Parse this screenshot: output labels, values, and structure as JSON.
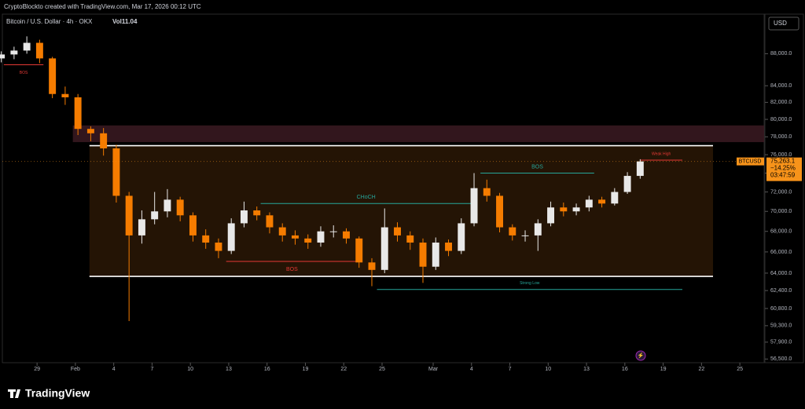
{
  "header": {
    "credit": "CryptoBlockto created with TradingView.com, Mar 17, 2026 00:12 UTC",
    "symbol": "Bitcoin / U.S. Dollar · 4h · OKX",
    "volume": "Vol11.04",
    "currency": "USD"
  },
  "footer": {
    "brand": "TradingView"
  },
  "chart_data": {
    "type": "candlestick",
    "log_scale": true,
    "grid": false,
    "up_color": "#e8e8e8",
    "down_color": "#f57c00",
    "xlim": [
      -2.9,
      56.9
    ],
    "xticks": [
      {
        "value": 0,
        "label": "29"
      },
      {
        "value": 3,
        "label": "Feb"
      },
      {
        "value": 6,
        "label": "4"
      },
      {
        "value": 9,
        "label": "7"
      },
      {
        "value": 12,
        "label": "10"
      },
      {
        "value": 15,
        "label": "13"
      },
      {
        "value": 18,
        "label": "16"
      },
      {
        "value": 21,
        "label": "19"
      },
      {
        "value": 24,
        "label": "22"
      },
      {
        "value": 27,
        "label": "25"
      },
      {
        "value": 31,
        "label": "Mar"
      },
      {
        "value": 34,
        "label": "4"
      },
      {
        "value": 37,
        "label": "7"
      },
      {
        "value": 40,
        "label": "10"
      },
      {
        "value": 43,
        "label": "13"
      },
      {
        "value": 46,
        "label": "16"
      },
      {
        "value": 49,
        "label": "19"
      },
      {
        "value": 52,
        "label": "22"
      },
      {
        "value": 55,
        "label": "25"
      }
    ],
    "ylim": [
      56200,
      93200
    ],
    "yticks": [
      {
        "value": 88000,
        "label": "88,000.0"
      },
      {
        "value": 84000,
        "label": "84,000.0"
      },
      {
        "value": 82000,
        "label": "82,000.0"
      },
      {
        "value": 80000,
        "label": "80,000.0"
      },
      {
        "value": 78000,
        "label": "78,000.0"
      },
      {
        "value": 76000,
        "label": "76,000.0"
      },
      {
        "value": 74000,
        "label": "74,000.0"
      },
      {
        "value": 72000,
        "label": "72,000.0"
      },
      {
        "value": 70000,
        "label": "70,000.0"
      },
      {
        "value": 68000,
        "label": "68,000.0"
      },
      {
        "value": 66000,
        "label": "66,000.0"
      },
      {
        "value": 64000,
        "label": "64,000.0"
      },
      {
        "value": 62400,
        "label": "62,400.0"
      },
      {
        "value": 60800,
        "label": "60,800.0"
      },
      {
        "value": 59300,
        "label": "59,300.0"
      },
      {
        "value": 57900,
        "label": "57,900.0"
      },
      {
        "value": 56500,
        "label": "56,500.0"
      }
    ],
    "x": [
      -2.8,
      -1.8,
      -0.8,
      0.2,
      1.2,
      2.2,
      3.2,
      4.2,
      5.2,
      6.2,
      7.2,
      8.2,
      9.2,
      10.2,
      11.2,
      12.2,
      13.2,
      14.2,
      15.2,
      16.2,
      17.2,
      18.2,
      19.2,
      20.2,
      21.2,
      22.2,
      23.2,
      24.2,
      25.2,
      26.2,
      27.2,
      28.2,
      29.2,
      30.2,
      31.2,
      32.2,
      33.2,
      34.2,
      35.2,
      36.2,
      37.2,
      38.2,
      39.2,
      40.2,
      41.2,
      42.2,
      43.2,
      44.2,
      45.2,
      46.2,
      47.2
    ],
    "open": [
      87400,
      87900,
      88400,
      89400,
      87400,
      83000,
      82600,
      78900,
      78400,
      76700,
      71600,
      67600,
      69200,
      70000,
      71200,
      69600,
      67600,
      66900,
      66100,
      68800,
      70100,
      69600,
      68400,
      67600,
      67300,
      66900,
      68000,
      68000,
      67300,
      65000,
      64300,
      68400,
      67600,
      66900,
      64600,
      66900,
      66100,
      68800,
      72400,
      71600,
      68400,
      67600,
      67600,
      68800,
      70400,
      70000,
      70400,
      71200,
      70800,
      72000,
      73700
    ],
    "high": [
      88300,
      88900,
      90240,
      89800,
      87600,
      83900,
      83000,
      79200,
      79000,
      77100,
      72000,
      70100,
      72000,
      72300,
      71500,
      69900,
      68200,
      67300,
      69300,
      71000,
      70500,
      69900,
      68800,
      68100,
      67700,
      68500,
      68600,
      68300,
      67500,
      65400,
      70300,
      68900,
      68000,
      67300,
      67400,
      67200,
      69300,
      74000,
      73300,
      71900,
      68700,
      68100,
      69200,
      71000,
      70900,
      70800,
      71600,
      71500,
      72400,
      74100,
      75500
    ],
    "low": [
      86900,
      87300,
      88000,
      86800,
      82500,
      81700,
      78200,
      77500,
      75900,
      70900,
      59700,
      66800,
      68700,
      69400,
      69000,
      67000,
      66300,
      65400,
      65800,
      68400,
      69100,
      67800,
      67000,
      66700,
      66300,
      66500,
      67400,
      66800,
      64500,
      62800,
      64000,
      67000,
      66200,
      63100,
      64300,
      65600,
      65800,
      68500,
      71000,
      67900,
      67100,
      67000,
      66100,
      68500,
      69500,
      69600,
      70000,
      70400,
      70600,
      71800,
      73400
    ],
    "close": [
      87900,
      88400,
      89400,
      87400,
      83000,
      82600,
      78900,
      78400,
      76700,
      71600,
      67600,
      69200,
      70000,
      71200,
      69600,
      67600,
      66900,
      66100,
      68800,
      70100,
      69600,
      68400,
      67600,
      67300,
      66900,
      68000,
      68000,
      67300,
      65000,
      64300,
      68400,
      67600,
      66900,
      64600,
      66900,
      66100,
      68800,
      72400,
      71600,
      68400,
      67600,
      67600,
      68800,
      70400,
      70000,
      70400,
      71200,
      70800,
      72000,
      73700,
      75263.1
    ],
    "last_label": "75,263.1",
    "change_label": "−14.25%",
    "countdown": "03:47:59",
    "symbol_tag": "BTCUSD",
    "tag_color": "#f7931a",
    "zones": [
      {
        "top": 79300,
        "bottom": 77400,
        "x_start": 2.8,
        "x_end": 56.9,
        "color": "#3b1a22"
      },
      {
        "top": 77000,
        "bottom": 63700,
        "x_start": 4.1,
        "x_end": 52.9,
        "color": "#2a1806"
      }
    ],
    "levels": [
      {
        "price": 86600,
        "x_start": -2.6,
        "x_end": 0.5,
        "color": "#e53935",
        "label": "BOS"
      },
      {
        "price": 77000,
        "x_start": 4.1,
        "x_end": 52.9,
        "color": "#ffffff"
      },
      {
        "price": 63700,
        "x_start": 4.1,
        "x_end": 52.9,
        "color": "#ffffff"
      },
      {
        "price": 65100,
        "x_start": 14.8,
        "x_end": 25.1,
        "color": "#e53935",
        "label": "BOS"
      },
      {
        "price": 70800,
        "x_start": 17.5,
        "x_end": 34.0,
        "color": "#26a69a",
        "label": "CHoCH"
      },
      {
        "price": 74000,
        "x_start": 34.7,
        "x_end": 43.6,
        "color": "#26a69a",
        "label": "BOS"
      },
      {
        "price": 62500,
        "x_start": 26.6,
        "x_end": 50.5,
        "color": "#26a69a",
        "label": "Strong Low"
      },
      {
        "price": 75400,
        "x_start": 47.2,
        "x_end": 50.5,
        "color": "#e53935",
        "label": "Weak High"
      }
    ]
  }
}
